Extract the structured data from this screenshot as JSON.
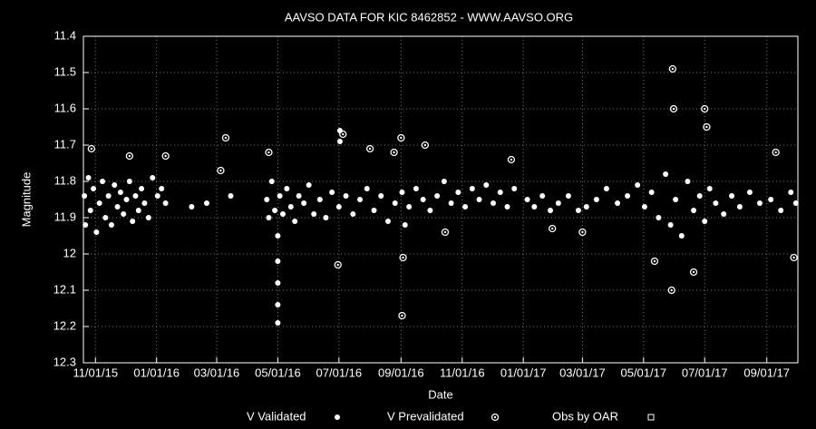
{
  "chart_data": {
    "type": "scatter",
    "title": "AAVSO DATA FOR KIC 8462852 - WWW.AAVSO.ORG",
    "x_label": "Date",
    "y_label": "Magnitude",
    "xlim": [
      "2015-10-20",
      "2017-10-02"
    ],
    "ylim": [
      12.3,
      11.4
    ],
    "xticks": [
      {
        "value": "2015-11-01",
        "label": "11/01/15"
      },
      {
        "value": "2016-01-01",
        "label": "01/01/16"
      },
      {
        "value": "2016-03-01",
        "label": "03/01/16"
      },
      {
        "value": "2016-05-01",
        "label": "05/01/16"
      },
      {
        "value": "2016-07-01",
        "label": "07/01/16"
      },
      {
        "value": "2016-09-01",
        "label": "09/01/16"
      },
      {
        "value": "2016-11-01",
        "label": "11/01/16"
      },
      {
        "value": "2017-01-01",
        "label": "01/01/17"
      },
      {
        "value": "2017-03-01",
        "label": "03/01/17"
      },
      {
        "value": "2017-05-01",
        "label": "05/01/17"
      },
      {
        "value": "2017-07-01",
        "label": "07/01/17"
      },
      {
        "value": "2017-09-01",
        "label": "09/01/17"
      }
    ],
    "yticks": [
      11.4,
      11.5,
      11.6,
      11.7,
      11.8,
      11.9,
      12,
      12.1,
      12.2,
      12.3
    ],
    "grid": true,
    "series": [
      {
        "name": "V Validated",
        "color": "#ffffff",
        "marker": "dot",
        "x": [
          "2015-10-21",
          "2015-10-22",
          "2015-10-25",
          "2015-10-27",
          "2015-10-30",
          "2015-11-02",
          "2015-11-05",
          "2015-11-08",
          "2015-11-11",
          "2015-11-14",
          "2015-11-17",
          "2015-11-20",
          "2015-11-23",
          "2015-11-26",
          "2015-11-29",
          "2015-12-02",
          "2015-12-05",
          "2015-12-08",
          "2015-12-11",
          "2015-12-14",
          "2015-12-17",
          "2015-12-20",
          "2015-12-24",
          "2015-12-28",
          "2016-01-02",
          "2016-01-06",
          "2016-01-10",
          "2016-02-05",
          "2016-02-20",
          "2016-03-15",
          "2016-04-20",
          "2016-04-22",
          "2016-04-25",
          "2016-04-28",
          "2016-05-01",
          "2016-05-01",
          "2016-05-01",
          "2016-05-01",
          "2016-05-01",
          "2016-05-03",
          "2016-05-06",
          "2016-05-10",
          "2016-05-14",
          "2016-05-18",
          "2016-05-22",
          "2016-05-27",
          "2016-06-01",
          "2016-06-06",
          "2016-06-12",
          "2016-06-18",
          "2016-06-24",
          "2016-07-01",
          "2016-07-02",
          "2016-07-02",
          "2016-07-08",
          "2016-07-15",
          "2016-07-22",
          "2016-07-29",
          "2016-08-05",
          "2016-08-12",
          "2016-08-19",
          "2016-08-26",
          "2016-09-02",
          "2016-09-05",
          "2016-09-09",
          "2016-09-16",
          "2016-09-23",
          "2016-09-30",
          "2016-10-07",
          "2016-10-14",
          "2016-10-21",
          "2016-10-28",
          "2016-11-04",
          "2016-11-11",
          "2016-11-18",
          "2016-11-25",
          "2016-12-02",
          "2016-12-09",
          "2016-12-16",
          "2016-12-23",
          "2017-01-05",
          "2017-01-12",
          "2017-01-20",
          "2017-01-28",
          "2017-02-05",
          "2017-02-15",
          "2017-02-25",
          "2017-03-05",
          "2017-03-15",
          "2017-03-25",
          "2017-04-05",
          "2017-04-15",
          "2017-04-25",
          "2017-05-02",
          "2017-05-09",
          "2017-05-16",
          "2017-05-23",
          "2017-05-28",
          "2017-06-02",
          "2017-06-08",
          "2017-06-14",
          "2017-06-20",
          "2017-06-26",
          "2017-07-01",
          "2017-07-06",
          "2017-07-12",
          "2017-07-20",
          "2017-07-28",
          "2017-08-05",
          "2017-08-15",
          "2017-08-25",
          "2017-09-05",
          "2017-09-15",
          "2017-09-25",
          "2017-09-30"
        ],
        "values": [
          11.84,
          11.92,
          11.79,
          11.88,
          11.82,
          11.94,
          11.86,
          11.8,
          11.9,
          11.84,
          11.92,
          11.81,
          11.87,
          11.83,
          11.89,
          11.85,
          11.8,
          11.91,
          11.84,
          11.88,
          11.82,
          11.86,
          11.9,
          11.79,
          11.84,
          11.82,
          11.86,
          11.87,
          11.86,
          11.84,
          11.85,
          11.9,
          11.8,
          11.88,
          11.95,
          12.02,
          12.08,
          12.14,
          12.19,
          11.84,
          11.89,
          11.82,
          11.87,
          11.91,
          11.84,
          11.86,
          11.81,
          11.89,
          11.85,
          11.9,
          11.83,
          11.87,
          11.66,
          11.69,
          11.84,
          11.89,
          11.85,
          11.82,
          11.88,
          11.84,
          11.91,
          11.86,
          11.83,
          11.92,
          11.87,
          11.82,
          11.85,
          11.88,
          11.84,
          11.8,
          11.86,
          11.83,
          11.87,
          11.82,
          11.85,
          11.81,
          11.86,
          11.83,
          11.87,
          11.82,
          11.85,
          11.87,
          11.84,
          11.88,
          11.86,
          11.84,
          11.88,
          11.87,
          11.85,
          11.82,
          11.86,
          11.84,
          11.81,
          11.87,
          11.83,
          11.9,
          11.78,
          11.92,
          11.85,
          11.95,
          11.8,
          11.88,
          11.84,
          11.91,
          11.82,
          11.86,
          11.89,
          11.84,
          11.87,
          11.83,
          11.86,
          11.85,
          11.88,
          11.83,
          11.86
        ]
      },
      {
        "name": "V Prevalidated",
        "color": "#ffffff",
        "marker": "circle-dot",
        "x": [
          "2015-10-28",
          "2015-12-05",
          "2016-01-10",
          "2016-03-05",
          "2016-03-10",
          "2016-04-22",
          "2016-06-30",
          "2016-07-05",
          "2016-08-01",
          "2016-08-25",
          "2016-09-01",
          "2016-09-02",
          "2016-09-03",
          "2016-09-25",
          "2016-10-15",
          "2016-12-20",
          "2017-01-30",
          "2017-03-01",
          "2017-05-12",
          "2017-05-29",
          "2017-05-30",
          "2017-05-31",
          "2017-06-20",
          "2017-07-01",
          "2017-07-03",
          "2017-09-10",
          "2017-09-28"
        ],
        "values": [
          11.71,
          11.73,
          11.73,
          11.77,
          11.68,
          11.72,
          12.03,
          11.67,
          11.71,
          11.72,
          11.68,
          12.17,
          12.01,
          11.7,
          11.94,
          11.74,
          11.93,
          11.94,
          12.02,
          12.1,
          11.49,
          11.6,
          12.05,
          11.6,
          11.65,
          11.72,
          12.01
        ]
      },
      {
        "name": "Obs by OAR",
        "color": "#ffffff",
        "marker": "square",
        "x": [],
        "values": []
      }
    ]
  }
}
